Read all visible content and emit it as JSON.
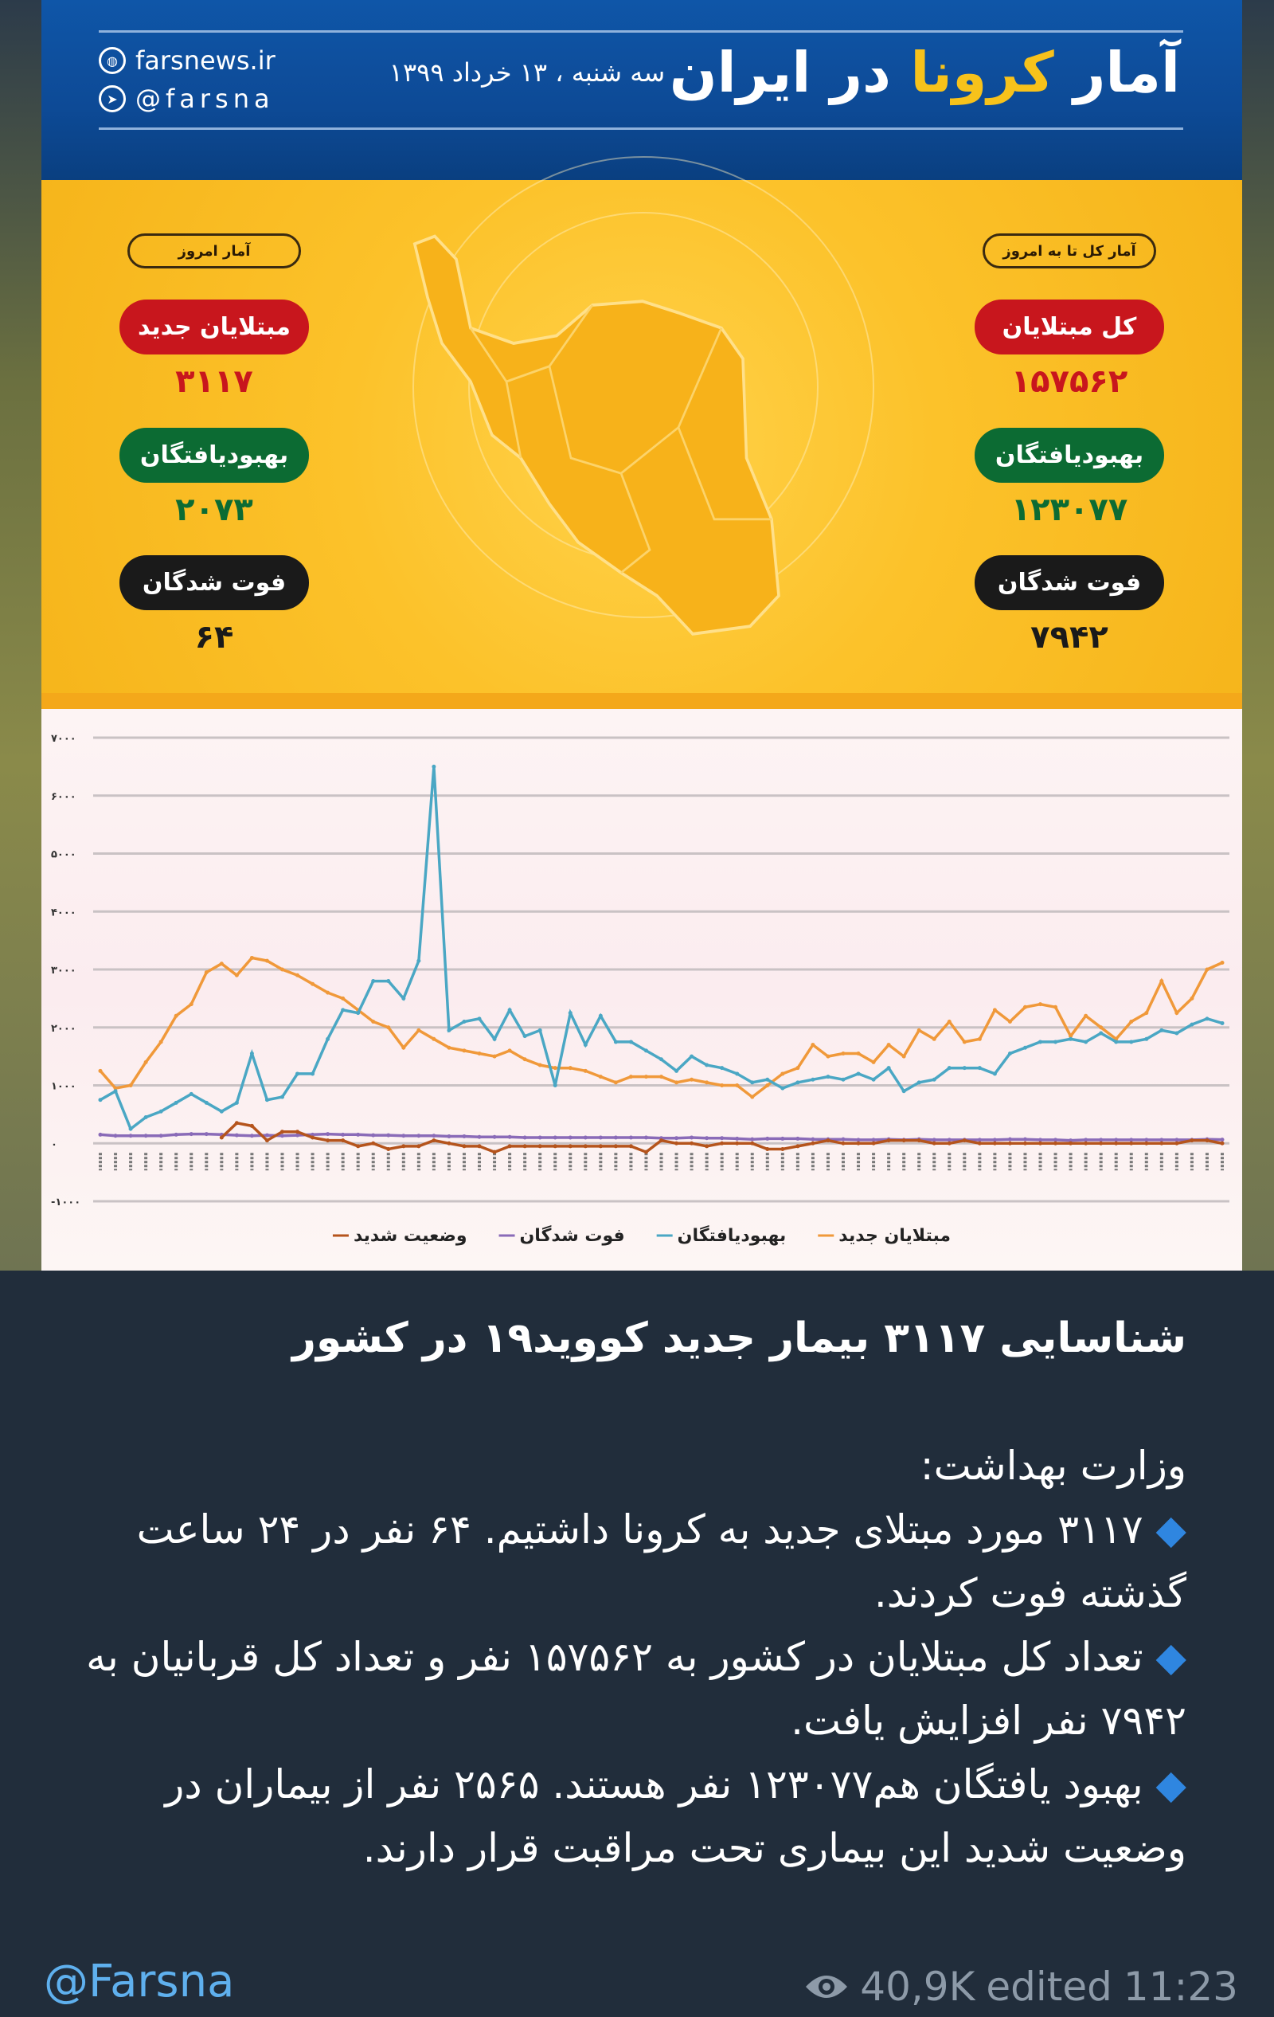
{
  "poster": {
    "title_part1": "آمار ",
    "title_highlight": "کرونا",
    "title_part2": " در ایران",
    "date": "سه شنبه ، ۱۳ خرداد ۱۳۹۹",
    "website": "farsnews.ir",
    "telegram": "@farsna",
    "today": {
      "tag": "آمار امروز",
      "items": [
        {
          "label": "مبتلایان جدید",
          "value": "۳۱۱۷",
          "color": "#c8161d"
        },
        {
          "label": "بهبودیافتگان",
          "value": "۲۰۷۳",
          "color": "#0c6b33"
        },
        {
          "label": "فوت شدگان",
          "value": "۶۴",
          "color": "#1a1a1a"
        }
      ]
    },
    "total": {
      "tag": "آمار کل تا به امروز",
      "items": [
        {
          "label": "کل مبتلایان",
          "value": "۱۵۷۵۶۲",
          "color": "#c8161d"
        },
        {
          "label": "بهبودیافتگان",
          "value": "۱۲۳۰۷۷",
          "color": "#0c6b33"
        },
        {
          "label": "فوت شدگان",
          "value": "۷۹۴۲",
          "color": "#1a1a1a"
        }
      ]
    }
  },
  "chart_data": {
    "type": "line",
    "ylim": [
      -1000,
      7000
    ],
    "yticks": [
      7000,
      6000,
      5000,
      4000,
      3000,
      2000,
      1000,
      0,
      -1000
    ],
    "ytick_labels": [
      "۷۰۰۰",
      "۶۰۰۰",
      "۵۰۰۰",
      "۴۰۰۰",
      "۳۰۰۰",
      "۲۰۰۰",
      "۱۰۰۰",
      "۰",
      "-۱۰۰۰"
    ],
    "grid": true,
    "legend": "bottom",
    "series": [
      {
        "name": "مبتلایان جدید",
        "color": "#f0993a",
        "values": [
          1250,
          950,
          1000,
          1400,
          1750,
          2200,
          2400,
          2950,
          3100,
          2900,
          3200,
          3150,
          3000,
          2900,
          2750,
          2600,
          2500,
          2300,
          2100,
          2000,
          1650,
          1950,
          1800,
          1650,
          1600,
          1550,
          1500,
          1600,
          1450,
          1350,
          1300,
          1300,
          1250,
          1150,
          1050,
          1150,
          1150,
          1150,
          1050,
          1100,
          1050,
          1000,
          1000,
          800,
          1000,
          1200,
          1300,
          1700,
          1500,
          1550,
          1550,
          1400,
          1700,
          1500,
          1950,
          1800,
          2100,
          1750,
          1800,
          2300,
          2100,
          2350,
          2400,
          2350,
          1850,
          2200,
          2000,
          1800,
          2100,
          2250,
          2800,
          2250,
          2500,
          3000,
          3117
        ]
      },
      {
        "name": "بهبودیافتگان",
        "color": "#4aa7c4",
        "values": [
          750,
          900,
          250,
          450,
          550,
          700,
          850,
          700,
          550,
          700,
          1550,
          750,
          800,
          1200,
          1200,
          1800,
          2300,
          2250,
          2800,
          2800,
          2500,
          3150,
          6500,
          1950,
          2100,
          2150,
          1800,
          2300,
          1850,
          1950,
          1000,
          2250,
          1700,
          2200,
          1750,
          1750,
          1600,
          1450,
          1250,
          1500,
          1350,
          1300,
          1200,
          1050,
          1100,
          950,
          1050,
          1100,
          1150,
          1100,
          1200,
          1100,
          1300,
          900,
          1050,
          1100,
          1300,
          1300,
          1300,
          1200,
          1550,
          1650,
          1750,
          1750,
          1800,
          1750,
          1900,
          1750,
          1750,
          1800,
          1950,
          1900,
          2050,
          2150,
          2073
        ]
      },
      {
        "name": "فوت شدگان",
        "color": "#8a6bb8",
        "values": [
          150,
          130,
          130,
          130,
          130,
          150,
          160,
          160,
          150,
          140,
          130,
          140,
          130,
          140,
          150,
          160,
          150,
          150,
          140,
          140,
          130,
          130,
          130,
          120,
          120,
          110,
          110,
          110,
          100,
          100,
          100,
          100,
          100,
          100,
          100,
          100,
          100,
          90,
          90,
          100,
          90,
          90,
          80,
          70,
          80,
          80,
          80,
          70,
          70,
          70,
          60,
          60,
          70,
          60,
          70,
          60,
          60,
          60,
          60,
          60,
          70,
          70,
          60,
          60,
          50,
          60,
          60,
          60,
          60,
          60,
          60,
          60,
          60,
          70,
          64
        ]
      },
      {
        "name": "وضعیت شدید",
        "color": "#b5541c",
        "values": [
          null,
          null,
          null,
          null,
          null,
          null,
          null,
          null,
          100,
          350,
          300,
          50,
          200,
          200,
          100,
          50,
          50,
          -50,
          0,
          -100,
          -50,
          -50,
          50,
          0,
          -50,
          -50,
          -150,
          -50,
          -50,
          -50,
          -50,
          -50,
          -50,
          -50,
          -50,
          -50,
          -150,
          50,
          0,
          0,
          -50,
          0,
          0,
          0,
          -100,
          -100,
          -50,
          0,
          50,
          0,
          0,
          0,
          50,
          50,
          50,
          0,
          0,
          50,
          0,
          0,
          0,
          0,
          0,
          0,
          0,
          0,
          0,
          0,
          0,
          0,
          0,
          0,
          50,
          50,
          0
        ]
      }
    ]
  },
  "message": {
    "title": "شناسایی ۳۱۱۷  بیمار جدید کووید۱۹ در کشور",
    "intro": "وزارت بهداشت:",
    "bullets": [
      "۳۱۱۷ مورد مبتلای جدید به کرونا داشتیم. ۶۴ نفر در ۲۴ ساعت گذشته فوت کردند.",
      "تعداد کل مبتلایان در کشور به ۱۵۷۵۶۲ نفر و تعداد کل قربانیان به ۷۹۴۲ نفر افزایش یافت.",
      "بهبود یافتگان هم۱۲۳۰۷۷ نفر هستند. ۲۵۶۵ نفر از بیماران در وضعیت شدید این بیماری تحت مراقبت قرار دارند."
    ],
    "bullet_icon": "blue-diamond-icon",
    "author": "@Farsna",
    "views": "40,9K",
    "edited": "edited",
    "time": "11:23"
  }
}
